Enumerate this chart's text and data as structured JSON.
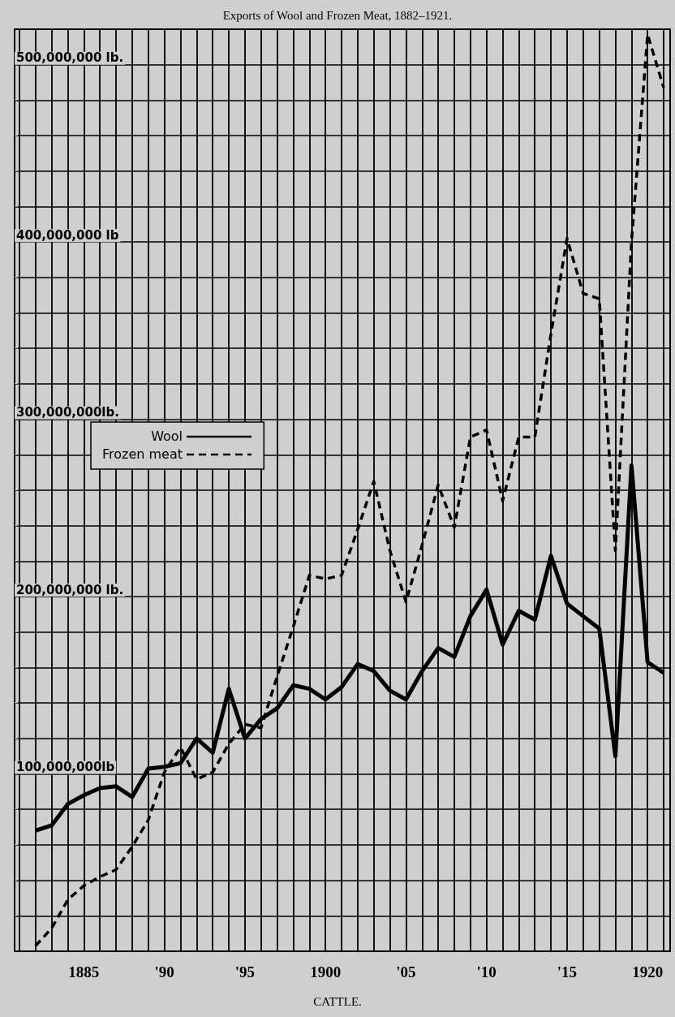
{
  "chart_data": {
    "type": "line",
    "title": "Exports of Wool and Frozen Meat, 1882–1921.",
    "annotations": [
      "CATTLE."
    ],
    "x": [
      1882,
      1883,
      1884,
      1885,
      1886,
      1887,
      1888,
      1889,
      1890,
      1891,
      1892,
      1893,
      1894,
      1895,
      1896,
      1897,
      1898,
      1899,
      1900,
      1901,
      1902,
      1903,
      1904,
      1905,
      1906,
      1907,
      1908,
      1909,
      1910,
      1911,
      1912,
      1913,
      1914,
      1915,
      1916,
      1917,
      1918,
      1919,
      1920,
      1921
    ],
    "series": [
      {
        "name": "Wool",
        "color": "#000000",
        "line_style": "solid",
        "values": [
          68000000,
          71000000,
          83000000,
          88000000,
          92000000,
          93000000,
          87000000,
          103000000,
          104000000,
          106000000,
          120000000,
          112000000,
          148000000,
          120000000,
          131000000,
          137000000,
          150000000,
          148000000,
          142000000,
          149000000,
          162000000,
          158000000,
          147000000,
          142000000,
          158000000,
          171000000,
          166000000,
          189000000,
          204000000,
          173000000,
          192000000,
          187000000,
          223000000,
          196000000,
          189000000,
          182000000,
          110000000,
          274000000,
          163000000,
          157000000
        ]
      },
      {
        "name": "Frozen meat",
        "color": "#000000",
        "line_style": "dashed",
        "values": [
          3000000,
          13000000,
          29000000,
          37000000,
          42000000,
          46000000,
          59000000,
          74000000,
          101000000,
          115000000,
          97000000,
          101000000,
          117000000,
          128000000,
          126000000,
          155000000,
          183000000,
          212000000,
          210000000,
          212000000,
          238000000,
          265000000,
          226000000,
          197000000,
          229000000,
          263000000,
          239000000,
          290000000,
          294000000,
          254000000,
          290000000,
          290000000,
          348000000,
          402000000,
          371000000,
          368000000,
          226000000,
          400000000,
          517000000,
          487000000
        ]
      }
    ],
    "xlim": [
      1880.7,
      1921.4
    ],
    "xticks": [
      {
        "value": 1881,
        "label": null
      },
      {
        "value": 1882,
        "label": null
      },
      {
        "value": 1883,
        "label": null
      },
      {
        "value": 1884,
        "label": null
      },
      1885,
      {
        "value": 1886,
        "label": null
      },
      {
        "value": 1887,
        "label": null
      },
      {
        "value": 1888,
        "label": null
      },
      {
        "value": 1889,
        "label": null
      },
      {
        "value": 1890,
        "label": "'90"
      },
      {
        "value": 1891,
        "label": null
      },
      {
        "value": 1892,
        "label": null
      },
      {
        "value": 1893,
        "label": null
      },
      {
        "value": 1894,
        "label": null
      },
      {
        "value": 1895,
        "label": "'95"
      },
      {
        "value": 1896,
        "label": null
      },
      {
        "value": 1897,
        "label": null
      },
      {
        "value": 1898,
        "label": null
      },
      {
        "value": 1899,
        "label": null
      },
      1900,
      {
        "value": 1901,
        "label": null
      },
      {
        "value": 1902,
        "label": null
      },
      {
        "value": 1903,
        "label": null
      },
      {
        "value": 1904,
        "label": null
      },
      {
        "value": 1905,
        "label": "'05"
      },
      {
        "value": 1906,
        "label": null
      },
      {
        "value": 1907,
        "label": null
      },
      {
        "value": 1908,
        "label": null
      },
      {
        "value": 1909,
        "label": null
      },
      {
        "value": 1910,
        "label": "'10"
      },
      {
        "value": 1911,
        "label": null
      },
      {
        "value": 1912,
        "label": null
      },
      {
        "value": 1913,
        "label": null
      },
      {
        "value": 1914,
        "label": null
      },
      {
        "value": 1915,
        "label": "'15"
      },
      {
        "value": 1916,
        "label": null
      },
      {
        "value": 1917,
        "label": null
      },
      {
        "value": 1918,
        "label": null
      },
      {
        "value": 1919,
        "label": null
      },
      1920,
      {
        "value": 1921,
        "label": null
      }
    ],
    "ylim": [
      0,
      520000000
    ],
    "yticks": [
      {
        "value": 20000000,
        "label": null
      },
      {
        "value": 40000000,
        "label": null
      },
      {
        "value": 60000000,
        "label": null
      },
      {
        "value": 80000000,
        "label": null
      },
      {
        "value": 100000000,
        "label": "100,000,000lb"
      },
      {
        "value": 120000000,
        "label": null
      },
      {
        "value": 140000000,
        "label": null
      },
      {
        "value": 160000000,
        "label": null
      },
      {
        "value": 180000000,
        "label": null
      },
      {
        "value": 200000000,
        "label": "200,000,000 lb."
      },
      {
        "value": 220000000,
        "label": null
      },
      {
        "value": 240000000,
        "label": null
      },
      {
        "value": 260000000,
        "label": null
      },
      {
        "value": 280000000,
        "label": null
      },
      {
        "value": 300000000,
        "label": "300,000,000lb."
      },
      {
        "value": 320000000,
        "label": null
      },
      {
        "value": 340000000,
        "label": null
      },
      {
        "value": 360000000,
        "label": null
      },
      {
        "value": 380000000,
        "label": null
      },
      {
        "value": 400000000,
        "label": "400,000,000 lb"
      },
      {
        "value": 420000000,
        "label": null
      },
      {
        "value": 440000000,
        "label": null
      },
      {
        "value": 460000000,
        "label": null
      },
      {
        "value": 480000000,
        "label": null
      },
      {
        "value": 500000000,
        "label": "500,000,000 lb."
      }
    ],
    "grid": true,
    "legend": "top left",
    "marker": "none"
  }
}
